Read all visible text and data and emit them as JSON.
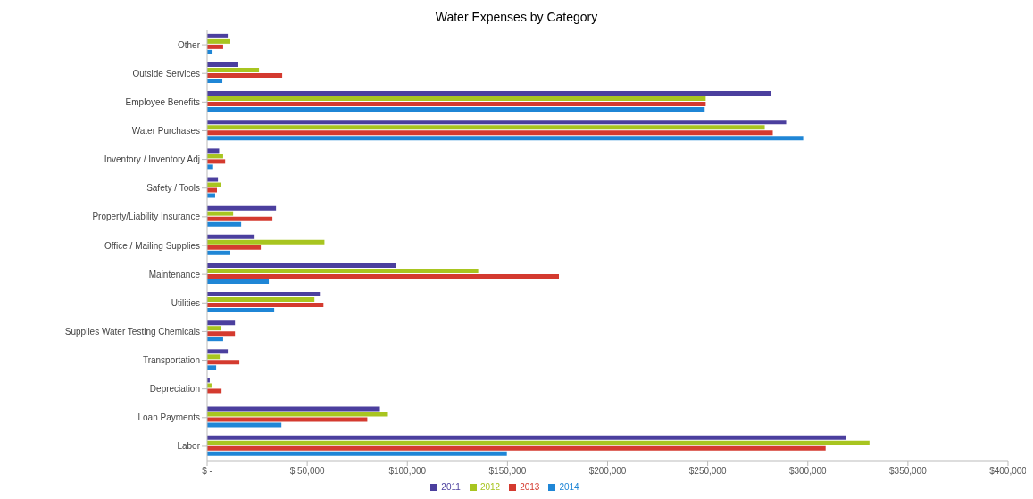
{
  "chart_data": {
    "type": "bar",
    "orientation": "horizontal",
    "title": "Water Expenses by Category",
    "categories": [
      "Other",
      "Outside Services",
      "Employee Benefits",
      "Water Purchases",
      "Inventory / Inventory Adj",
      "Safety / Tools",
      "Property/Liability Insurance",
      "Office / Mailing Supplies",
      "Maintenance",
      "Utilities",
      "Supplies Water Testing Chemicals",
      "Transportation",
      "Depreciation",
      "Loan Payments",
      "Labor"
    ],
    "series": [
      {
        "name": "2011",
        "color": "#4b3f9e",
        "values": [
          10300,
          15600,
          281600,
          289200,
          6000,
          5400,
          34400,
          23700,
          94300,
          56300,
          13900,
          10300,
          1300,
          86300,
          319200
        ]
      },
      {
        "name": "2012",
        "color": "#a8c520",
        "values": [
          11600,
          25900,
          249000,
          278500,
          8000,
          6700,
          13000,
          58600,
          135400,
          53600,
          6700,
          6300,
          2200,
          90300,
          330800
        ]
      },
      {
        "name": "2013",
        "color": "#d43a2f",
        "values": [
          8000,
          37500,
          249000,
          282500,
          9000,
          4900,
          32600,
          26800,
          175700,
          58100,
          13900,
          16100,
          7200,
          80000,
          308900
        ]
      },
      {
        "name": "2014",
        "color": "#1f86d6",
        "values": [
          2700,
          7600,
          248500,
          297700,
          3000,
          4000,
          17000,
          11600,
          30800,
          33500,
          8000,
          4500,
          null,
          37100,
          149700
        ]
      }
    ],
    "xlim": [
      0,
      400000
    ],
    "xticks": [
      {
        "value": 0,
        "label": "$ -"
      },
      {
        "value": 50000,
        "label": "$ 50,000"
      },
      {
        "value": 100000,
        "label": "$100,000"
      },
      {
        "value": 150000,
        "label": "$150,000"
      },
      {
        "value": 200000,
        "label": "$200,000"
      },
      {
        "value": 250000,
        "label": "$250,000"
      },
      {
        "value": 300000,
        "label": "$300,000"
      },
      {
        "value": 350000,
        "label": "$350,000"
      },
      {
        "value": 400000,
        "label": "$400,000"
      }
    ],
    "legend": "bottom",
    "grid": false
  }
}
